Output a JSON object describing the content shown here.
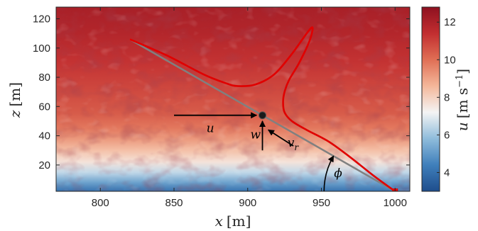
{
  "chart_data": {
    "type": "heatmap",
    "x_axis": {
      "label_var": "x",
      "label_unit": "[m]",
      "range": [
        770,
        1010
      ],
      "ticks": [
        800,
        850,
        900,
        950,
        1000
      ],
      "tick_labels": [
        "800",
        "850",
        "900",
        "950",
        "1000"
      ]
    },
    "y_axis": {
      "label_var": "z",
      "label_unit": "[m]",
      "range": [
        2,
        128
      ],
      "ticks": [
        20,
        40,
        60,
        80,
        100,
        120
      ],
      "tick_labels": [
        "20",
        "40",
        "60",
        "80",
        "100",
        "120"
      ]
    },
    "colorbar": {
      "label_var": "u",
      "label_unit_open": "[m s",
      "label_unit_exp": "−1",
      "label_unit_close": "]",
      "range": [
        3,
        12.8
      ],
      "ticks": [
        4,
        6,
        8,
        10,
        12
      ],
      "tick_labels": [
        "4",
        "6",
        "8",
        "10",
        "12"
      ],
      "colormap": [
        "#1e4d8c",
        "#3f7fbb",
        "#8fbcdb",
        "#f4f4f4",
        "#f4b79a",
        "#e06f55",
        "#c22e30",
        "#8e1120"
      ]
    },
    "field_profile": {
      "z": [
        2,
        8,
        15,
        22,
        30,
        38,
        45,
        55,
        70,
        90,
        110,
        128
      ],
      "u": [
        4.0,
        5.2,
        6.5,
        7.6,
        8.4,
        9.2,
        9.8,
        10.4,
        10.8,
        11.3,
        11.8,
        12.1
      ]
    },
    "annotations": {
      "point_label_u": "u",
      "point_label_w": "w",
      "point_label_vr_base": "v",
      "point_label_vr_sub": "r",
      "angle_label": "ϕ"
    },
    "colors": {
      "beam_line": "#808080",
      "trajectory": "#e00000",
      "point": "#1a1a1a",
      "arrow": "#000000"
    },
    "series": [
      {
        "role": "beam_line",
        "x": [
          820,
          1000
        ],
        "z": [
          106,
          2
        ]
      },
      {
        "role": "trajectory",
        "x": [
          820,
          845,
          870,
          885,
          893,
          905,
          918,
          930,
          940,
          944,
          942,
          935,
          928,
          925,
          924,
          925,
          930,
          940,
          955,
          970,
          985,
          1000
        ],
        "z": [
          106,
          95,
          82,
          76,
          74,
          75,
          82,
          96,
          110,
          114,
          105,
          90,
          78,
          70,
          63,
          56,
          50,
          44,
          36,
          25,
          13,
          2
        ]
      }
    ],
    "point": {
      "x": 910,
      "z": 54
    },
    "vectors": [
      {
        "name": "u",
        "from": [
          850,
          54
        ],
        "to": [
          906,
          54
        ]
      },
      {
        "name": "w",
        "from": [
          910,
          30
        ],
        "to": [
          910,
          50
        ]
      },
      {
        "name": "v_r",
        "from": [
          931,
          33
        ],
        "to": [
          914,
          44
        ]
      }
    ],
    "end_marker": {
      "x": 1000,
      "z": 2
    }
  }
}
